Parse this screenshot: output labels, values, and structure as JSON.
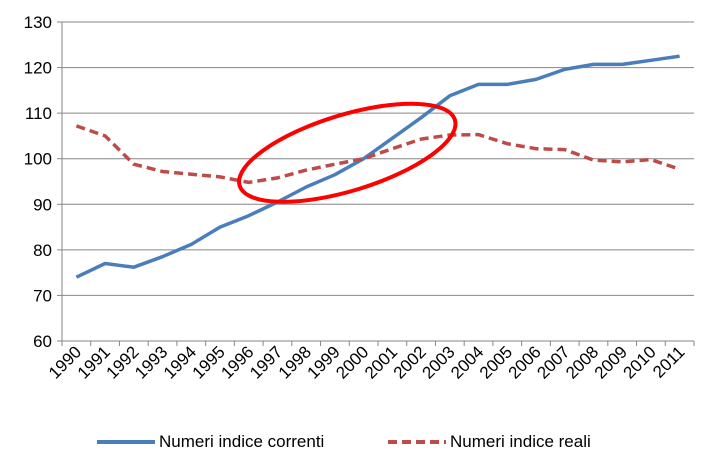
{
  "chart_data": {
    "type": "line",
    "categories": [
      "1990",
      "1991",
      "1992",
      "1993",
      "1994",
      "1995",
      "1996",
      "1997",
      "1998",
      "1999",
      "2000",
      "2001",
      "2002",
      "2003",
      "2004",
      "2005",
      "2006",
      "2007",
      "2008",
      "2009",
      "2010",
      "2011"
    ],
    "series": [
      {
        "name": "Numeri indice correnti",
        "color": "#4a7ebb",
        "style": "solid",
        "values": [
          74,
          77,
          76.2,
          78.5,
          81.2,
          85,
          87.5,
          90.5,
          93.8,
          96.5,
          100,
          104.5,
          109,
          113.8,
          116.3,
          116.3,
          117.4,
          119.6,
          120.7,
          120.7,
          121.6,
          122.5
        ]
      },
      {
        "name": "Numeri indice reali",
        "color": "#be4b48",
        "style": "dashed",
        "values": [
          107.2,
          105,
          98.8,
          97.2,
          96.6,
          96,
          94.8,
          95.8,
          97.5,
          98.8,
          100,
          102.2,
          104.3,
          105.2,
          105.3,
          103.3,
          102.2,
          102,
          99.7,
          99.3,
          99.8,
          97.7
        ]
      }
    ],
    "ylim": [
      60,
      130
    ],
    "yticks": [
      "60",
      "70",
      "80",
      "90",
      "100",
      "110",
      "120",
      "130"
    ],
    "grid": true,
    "legend_position": "bottom",
    "annotation": {
      "shape": "ellipse",
      "color": "#ff0000",
      "spans_categories": [
        "1996",
        "2003"
      ]
    }
  }
}
